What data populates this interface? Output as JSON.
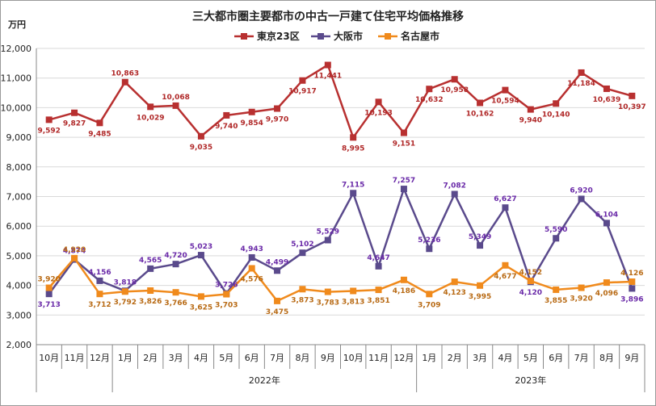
{
  "chart_data": {
    "type": "line",
    "title": "三大都市圏主要都市の中古一戸建て住宅平均価格推移",
    "ylabel": "万円",
    "ylim": [
      2000,
      12000
    ],
    "yticks": [
      "2,000",
      "3,000",
      "4,000",
      "5,000",
      "6,000",
      "7,000",
      "8,000",
      "9,000",
      "10,000",
      "11,000",
      "12,000"
    ],
    "categories": [
      "10月",
      "11月",
      "12月",
      "1月",
      "2月",
      "3月",
      "4月",
      "5月",
      "6月",
      "7月",
      "8月",
      "9月",
      "10月",
      "11月",
      "12月",
      "1月",
      "2月",
      "3月",
      "4月",
      "5月",
      "6月",
      "7月",
      "8月",
      "9月"
    ],
    "year_groups": [
      {
        "label": "2022年",
        "start": 3,
        "end": 14
      },
      {
        "label": "2023年",
        "start": 15,
        "end": 23
      }
    ],
    "legend_position": "top",
    "series": [
      {
        "name": "東京23区",
        "color": "#b83030",
        "label_color": "#b02828",
        "marker": "square",
        "values": [
          9592,
          9827,
          9485,
          10863,
          10029,
          10068,
          9035,
          9740,
          9854,
          9970,
          10917,
          11441,
          8995,
          10193,
          9151,
          10632,
          10958,
          10162,
          10594,
          9940,
          10140,
          11184,
          10639,
          10397
        ],
        "labels": [
          "9,592",
          "9,827",
          "9,485",
          "10,863",
          "10,029",
          "10,068",
          "9,035",
          "9,740",
          "9,854",
          "9,970",
          "10,917",
          "11,441",
          "8,995",
          "10,193",
          "9,151",
          "10,632",
          "10,958",
          "10,162",
          "10,594",
          "9,940",
          "10,140",
          "11,184",
          "10,639",
          "10,397"
        ]
      },
      {
        "name": "大阪市",
        "color": "#5a4a8c",
        "label_color": "#6a2aa8",
        "marker": "square",
        "values": [
          3713,
          4874,
          4156,
          3818,
          4565,
          4720,
          5023,
          3726,
          4943,
          4499,
          5102,
          5529,
          7115,
          4647,
          7257,
          5236,
          7082,
          5349,
          6627,
          4120,
          5590,
          6920,
          6104,
          3896
        ],
        "labels": [
          "3,713",
          "4,874",
          "4,156",
          "3,818",
          "4,565",
          "4,720",
          "5,023",
          "3,726",
          "4,943",
          "4,499",
          "5,102",
          "5,529",
          "7,115",
          "4,647",
          "7,257",
          "5,236",
          "7,082",
          "5,349",
          "6,627",
          "4,120",
          "5,590",
          "6,920",
          "6,104",
          "3,896"
        ]
      },
      {
        "name": "名古屋市",
        "color": "#f08a1c",
        "label_color": "#b86a14",
        "marker": "square",
        "values": [
          3920,
          4920,
          3712,
          3792,
          3826,
          3766,
          3625,
          3703,
          4576,
          3475,
          3873,
          3783,
          3813,
          3851,
          4186,
          3709,
          4123,
          3995,
          4677,
          4152,
          3855,
          3920,
          4096,
          4126
        ],
        "labels": [
          "3,920",
          "4,920",
          "3,712",
          "3,792",
          "3,826",
          "3,766",
          "3,625",
          "3,703",
          "4,576",
          "3,475",
          "3,873",
          "3,783",
          "3,813",
          "3,851",
          "4,186",
          "3,709",
          "4,123",
          "3,995",
          "4,677",
          "4,152",
          "3,855",
          "3,920",
          "4,096",
          "4,126"
        ]
      }
    ],
    "label_offsets": {
      "東京23区": [
        1,
        1,
        1,
        -1,
        1,
        -1,
        1,
        1,
        1,
        1,
        1,
        1,
        1,
        1,
        1,
        1,
        1,
        1,
        1,
        1,
        1,
        1,
        1,
        1
      ],
      "大阪市": [
        1,
        -1,
        -1,
        -1,
        -1,
        -1,
        -1,
        -1,
        -1,
        -1,
        -1,
        -1,
        -1,
        -1,
        -1,
        -1,
        -1,
        -1,
        -1,
        1,
        -1,
        -1,
        -1,
        1
      ],
      "名古屋市": [
        -1,
        -1,
        1,
        1,
        1,
        1,
        1,
        1,
        1,
        1,
        1,
        1,
        1,
        1,
        1,
        1,
        1,
        1,
        1,
        -1,
        1,
        1,
        1,
        -1
      ]
    }
  }
}
